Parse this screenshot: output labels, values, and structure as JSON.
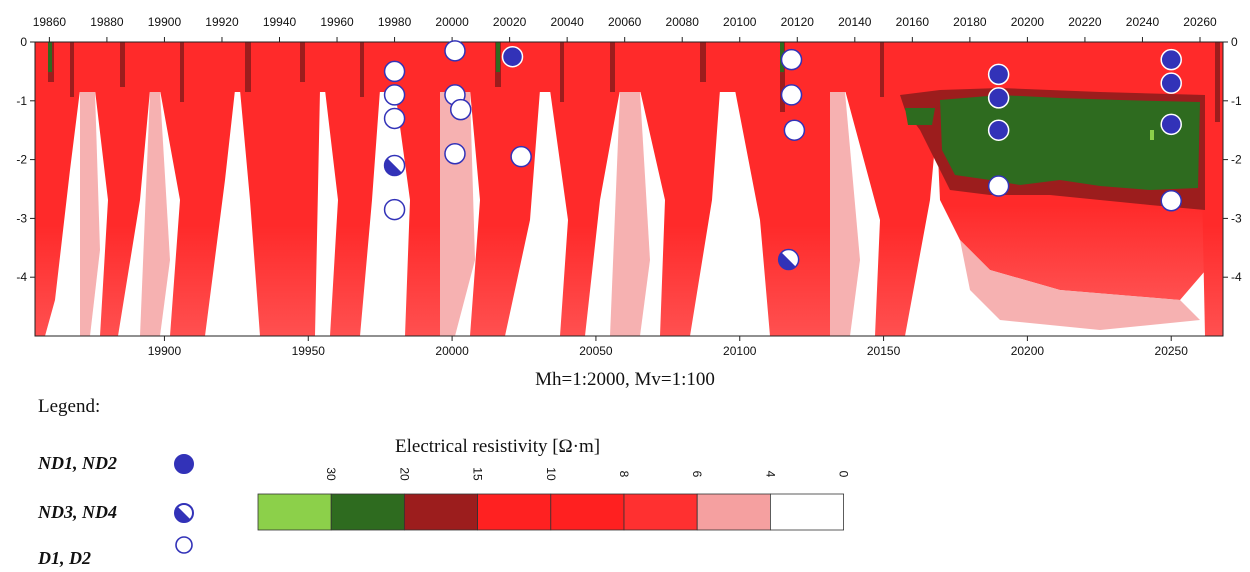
{
  "profile": {
    "top_axis_ticks": [
      "19860",
      "19880",
      "19900",
      "19920",
      "19940",
      "19960",
      "19980",
      "20000",
      "20020",
      "20040",
      "20060",
      "20080",
      "20100",
      "20120",
      "20140",
      "20160",
      "20180",
      "20200",
      "20220",
      "20240",
      "20260"
    ],
    "bottom_axis_ticks": [
      "19900",
      "19950",
      "20000",
      "20050",
      "20100",
      "20150",
      "20200",
      "20250"
    ],
    "left_depth_ticks": [
      "0",
      "-1",
      "-2",
      "-3",
      "-4"
    ],
    "right_depth_ticks": [
      "0",
      "-1",
      "-2",
      "-3",
      "-4"
    ],
    "x_range": [
      19855,
      20268
    ],
    "depth_range": [
      0,
      -5
    ],
    "points": [
      {
        "x": 19980,
        "depth": -0.5,
        "type": "D"
      },
      {
        "x": 19980,
        "depth": -0.9,
        "type": "D"
      },
      {
        "x": 19980,
        "depth": -1.3,
        "type": "D"
      },
      {
        "x": 19980,
        "depth": -2.1,
        "type": "ND34"
      },
      {
        "x": 19980,
        "depth": -2.85,
        "type": "D"
      },
      {
        "x": 20001,
        "depth": -0.15,
        "type": "D"
      },
      {
        "x": 20001,
        "depth": -0.9,
        "type": "D"
      },
      {
        "x": 20003,
        "depth": -1.15,
        "type": "D"
      },
      {
        "x": 20001,
        "depth": -1.9,
        "type": "D"
      },
      {
        "x": 20021,
        "depth": -0.25,
        "type": "ND12"
      },
      {
        "x": 20024,
        "depth": -1.95,
        "type": "D"
      },
      {
        "x": 20118,
        "depth": -0.3,
        "type": "D"
      },
      {
        "x": 20118,
        "depth": -0.9,
        "type": "D"
      },
      {
        "x": 20119,
        "depth": -1.5,
        "type": "D"
      },
      {
        "x": 20117,
        "depth": -3.7,
        "type": "ND34"
      },
      {
        "x": 20190,
        "depth": -0.55,
        "type": "ND12"
      },
      {
        "x": 20190,
        "depth": -0.95,
        "type": "ND12"
      },
      {
        "x": 20190,
        "depth": -1.5,
        "type": "ND12"
      },
      {
        "x": 20190,
        "depth": -2.45,
        "type": "D"
      },
      {
        "x": 20250,
        "depth": -0.3,
        "type": "ND12"
      },
      {
        "x": 20250,
        "depth": -0.7,
        "type": "ND12"
      },
      {
        "x": 20250,
        "depth": -1.4,
        "type": "ND12"
      },
      {
        "x": 20250,
        "depth": -2.7,
        "type": "D"
      }
    ]
  },
  "scale_note": "Mh=1:2000, Mv=1:100",
  "legend": {
    "title": "Legend:",
    "items": [
      {
        "label": "ND1, ND2",
        "symbol": "filled-circle"
      },
      {
        "label": "ND3, ND4",
        "symbol": "half-filled-circle"
      },
      {
        "label": "D1, D2",
        "symbol": "open-circle"
      }
    ]
  },
  "colorbar": {
    "title": "Electrical resistivity [Ω·m]",
    "labels": [
      "30",
      "20",
      "15",
      "10",
      "8",
      "6",
      "4",
      "0"
    ],
    "colors": [
      "#8cd04a",
      "#2e6b1f",
      "#9c1d1d",
      "#ff2121",
      "#ff2020",
      "#ff3030",
      "#f5a0a0",
      "#ffffff"
    ]
  },
  "colors": {
    "symbol_blue": "#3232b8",
    "high_red": "#ff2a2a",
    "light_pink": "#f5a3a3",
    "dark_green": "#2e6b1f"
  }
}
